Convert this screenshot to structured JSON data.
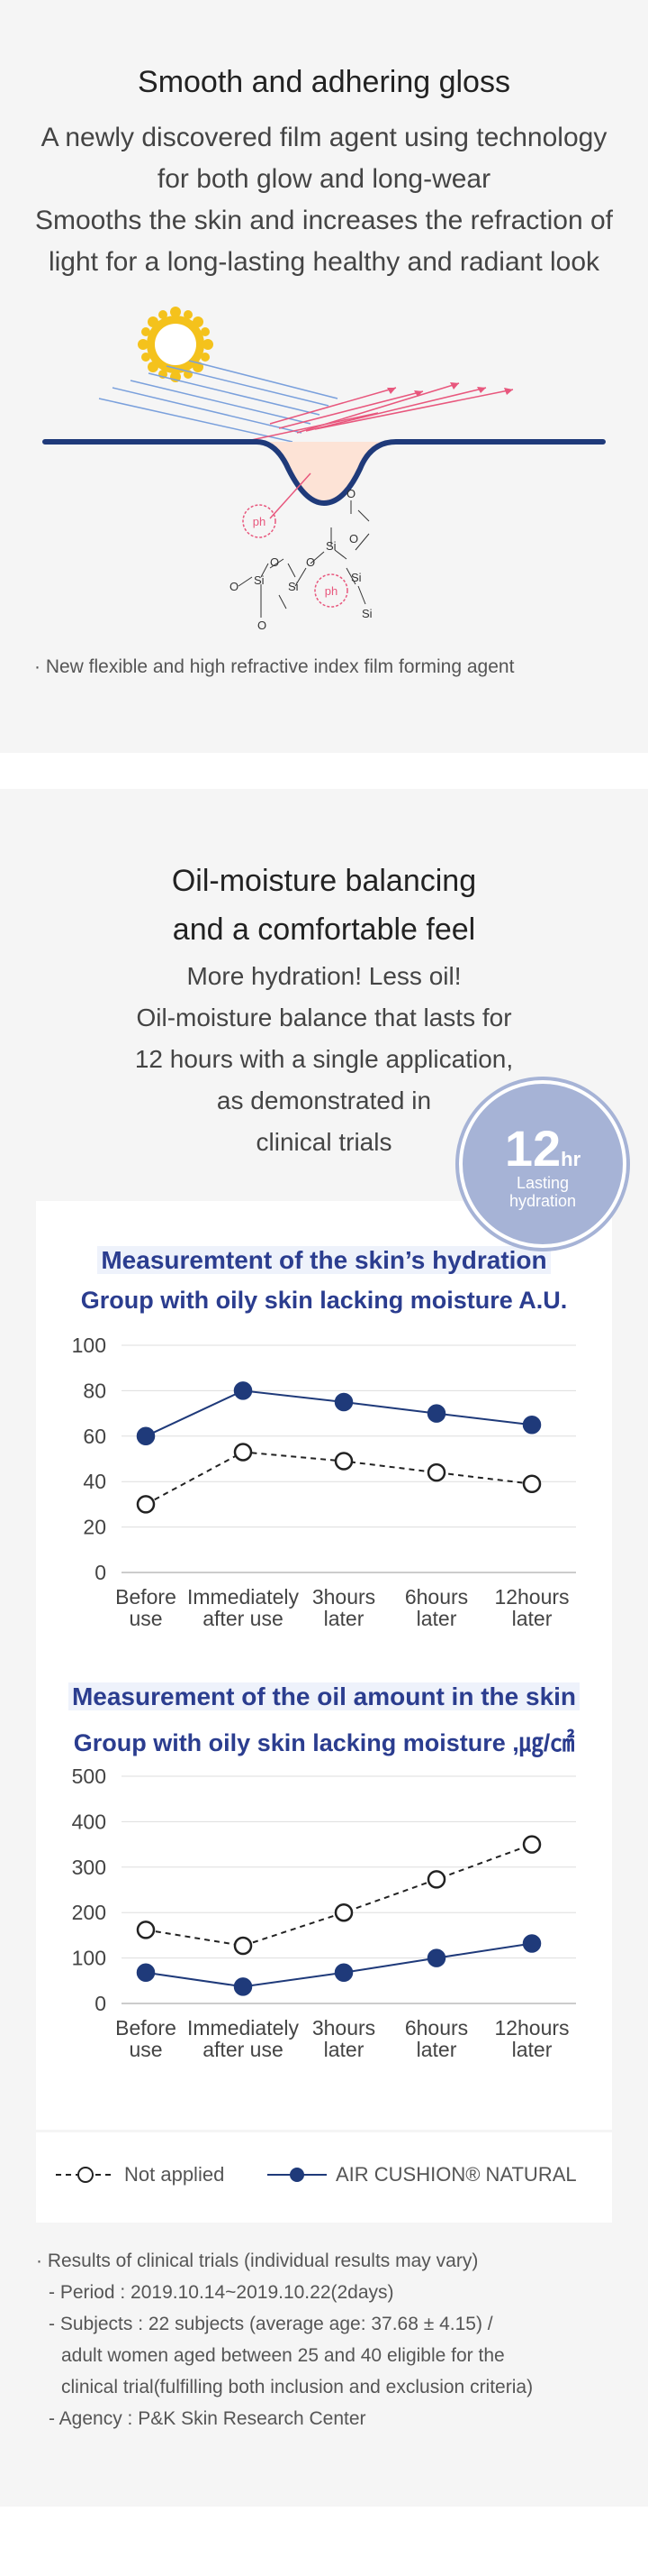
{
  "section1": {
    "title": "Smooth and adhering gloss",
    "desc": [
      "A newly discovered film agent using technology",
      "for both glow and long-wear",
      "Smooths the skin and increases the refraction of",
      "light for a long-lasting healthy and radiant look"
    ],
    "illustration": {
      "ph_label_1": "ph",
      "ph_label_2": "ph",
      "atom_labels": [
        "O",
        "Si",
        "O",
        "Si",
        "O",
        "O",
        "Si",
        "O",
        "Si",
        "O",
        "Si"
      ]
    },
    "note": "· New flexible and high refractive index film forming agent"
  },
  "section2": {
    "title": [
      "Oil-moisture balancing",
      "and a comfortable feel"
    ],
    "desc": [
      "More hydration! Less oil!",
      "Oil-moisture balance that lasts for",
      "12 hours with a single application,",
      "as demonstrated in",
      "clinical trials"
    ],
    "badge": {
      "number": "12",
      "unit": "hr",
      "line1": "Lasting",
      "line2": "hydration"
    },
    "legend": {
      "not_applied": "Not applied",
      "product": "AIR CUSHION® NATURAL"
    },
    "notes": [
      "· Results of clinical trials (individual results may vary)",
      "  - Period : 2019.10.14~2019.10.22(2days)",
      "  - Subjects : 22 subjects (average age: 37.68 ± 4.15) /",
      "    adult women aged between 25 and 40 eligible for the",
      "    clinical trial(fulfilling both inclusion and exclusion criteria)",
      "  - Agency : P&K Skin Research Center"
    ]
  },
  "chart_data": [
    {
      "type": "line",
      "title": "Measuremtent of the skin’s hydration",
      "subtitle": "Group with oily skin lacking moisture  A.U.",
      "categories": [
        [
          "Before",
          "use"
        ],
        [
          "Immediately",
          "after use"
        ],
        [
          "3hours",
          "later"
        ],
        [
          "6hours",
          "later"
        ],
        [
          "12hours",
          "later"
        ]
      ],
      "yticks": [
        0,
        20,
        40,
        60,
        80,
        100
      ],
      "ylim": [
        0,
        100
      ],
      "grid": true,
      "series": [
        {
          "name": "Not applied",
          "values": [
            30,
            53,
            49,
            44,
            39
          ],
          "style": "dashed-open",
          "color": "#222222"
        },
        {
          "name": "AIR CUSHION® NATURAL",
          "values": [
            60,
            80,
            75,
            70,
            65
          ],
          "style": "solid-filled",
          "color": "#1f3a7a"
        }
      ]
    },
    {
      "type": "line",
      "title": "Measurement of the oil amount in the skin",
      "subtitle": "Group with oily skin lacking moisture ,㎍/㎠",
      "categories": [
        [
          "Before",
          "use"
        ],
        [
          "Immediately",
          "after use"
        ],
        [
          "3hours",
          "later"
        ],
        [
          "6hours",
          "later"
        ],
        [
          "12hours",
          "later"
        ]
      ],
      "yticks": [
        0,
        100,
        200,
        300,
        400,
        500
      ],
      "ylim": [
        0,
        500
      ],
      "grid": true,
      "series": [
        {
          "name": "Not applied",
          "values": [
            162,
            127,
            200,
            273,
            350
          ],
          "style": "dashed-open",
          "color": "#222222"
        },
        {
          "name": "AIR CUSHION® NATURAL",
          "values": [
            68,
            37,
            68,
            100,
            132
          ],
          "style": "solid-filled",
          "color": "#1f3a7a"
        }
      ]
    }
  ]
}
